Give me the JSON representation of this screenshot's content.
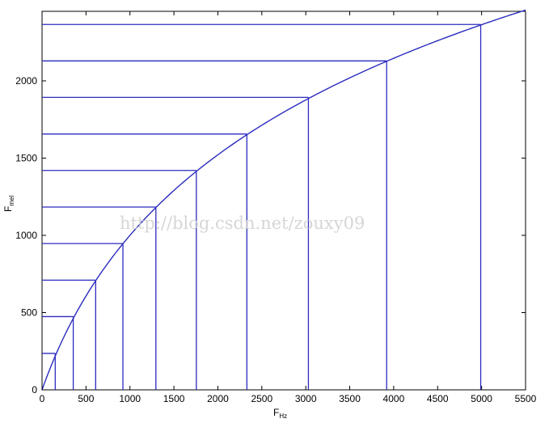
{
  "chart_data": {
    "type": "line",
    "xlabel_main": "F",
    "xlabel_sub": "Hz",
    "ylabel_main": "F",
    "ylabel_sub": "mel",
    "xlim": [
      0,
      5500
    ],
    "ylim": [
      0,
      2450
    ],
    "x_ticks": [
      0,
      500,
      1000,
      1500,
      2000,
      2500,
      3000,
      3500,
      4000,
      4500,
      5000,
      5500
    ],
    "y_ticks": [
      0,
      500,
      1000,
      1500,
      2000
    ],
    "curve": "mel = 2595 * log10(1 + f / 700)",
    "marked_points": [
      {
        "x": 150,
        "y": 236
      },
      {
        "x": 355,
        "y": 474
      },
      {
        "x": 610,
        "y": 710
      },
      {
        "x": 920,
        "y": 947
      },
      {
        "x": 1295,
        "y": 1183
      },
      {
        "x": 1755,
        "y": 1420
      },
      {
        "x": 2330,
        "y": 1656
      },
      {
        "x": 3030,
        "y": 1893
      },
      {
        "x": 3920,
        "y": 2129
      },
      {
        "x": 4990,
        "y": 2365
      }
    ],
    "line_color": "#2b2bbf",
    "grid": false,
    "watermark": "http://blog.csdn.net/zouxy09"
  }
}
